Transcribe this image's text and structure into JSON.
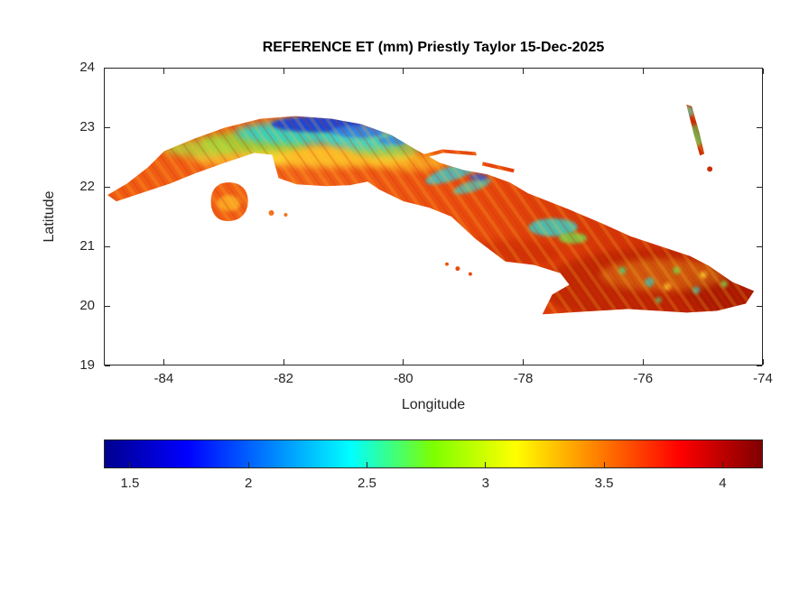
{
  "chart_data": {
    "type": "heatmap",
    "title": "REFERENCE ET (mm) Priestly Taylor 15-Dec-2025",
    "xlabel": "Longitude",
    "ylabel": "Latitude",
    "xlim": [
      -85,
      -74
    ],
    "ylim": [
      19,
      24
    ],
    "xticks": [
      -84,
      -82,
      -80,
      -78,
      -76,
      -74
    ],
    "yticks": [
      19,
      20,
      21,
      22,
      23,
      24
    ],
    "grid": false,
    "legend": "none",
    "region": "Cuba",
    "variable": "Reference evapotranspiration, Priestly Taylor method",
    "units": "mm",
    "date": "15-Dec-2025",
    "colorbar": {
      "orientation": "horizontal",
      "position": "below x-axis",
      "colormap": "jet",
      "ticks": [
        1.5,
        2,
        2.5,
        3,
        3.5,
        4
      ],
      "range": [
        1.39,
        4.17
      ],
      "stops": [
        {
          "pos": 0,
          "color": "#00008f"
        },
        {
          "pos": 0.125,
          "color": "#0000ff"
        },
        {
          "pos": 0.375,
          "color": "#00ffff"
        },
        {
          "pos": 0.5,
          "color": "#7dff00"
        },
        {
          "pos": 0.625,
          "color": "#ffff00"
        },
        {
          "pos": 0.875,
          "color": "#ff0000"
        },
        {
          "pos": 1,
          "color": "#800000"
        }
      ]
    },
    "value_summary": {
      "dominant_range_mm": [
        3.2,
        4.0
      ],
      "low_value_areas": [
        {
          "area": "north-central coast, lon -82.2 to -79.8, lat 22.6 to 23.1",
          "values_mm": [
            1.5,
            2.6
          ]
        },
        {
          "area": "central patches, lon -79.6 to -78.6, lat 21.8 to 22.2",
          "values_mm": [
            2.0,
            2.8
          ]
        },
        {
          "area": "east-central patch, lon -77.9 to -77.0, lat 21.0 to 21.5",
          "values_mm": [
            2.2,
            2.8
          ]
        },
        {
          "area": "northwest coastal strip, lon -84.0 to -82.5",
          "values_mm": [
            2.4,
            3.0
          ]
        }
      ],
      "high_value_areas": [
        {
          "area": "eastern Cuba, lon -77.5 to -74.2, lat 19.9 to 20.8",
          "values_mm": [
            3.6,
            4.0
          ]
        },
        {
          "area": "interior plains island-wide",
          "values_mm": [
            3.3,
            3.9
          ]
        }
      ]
    }
  }
}
